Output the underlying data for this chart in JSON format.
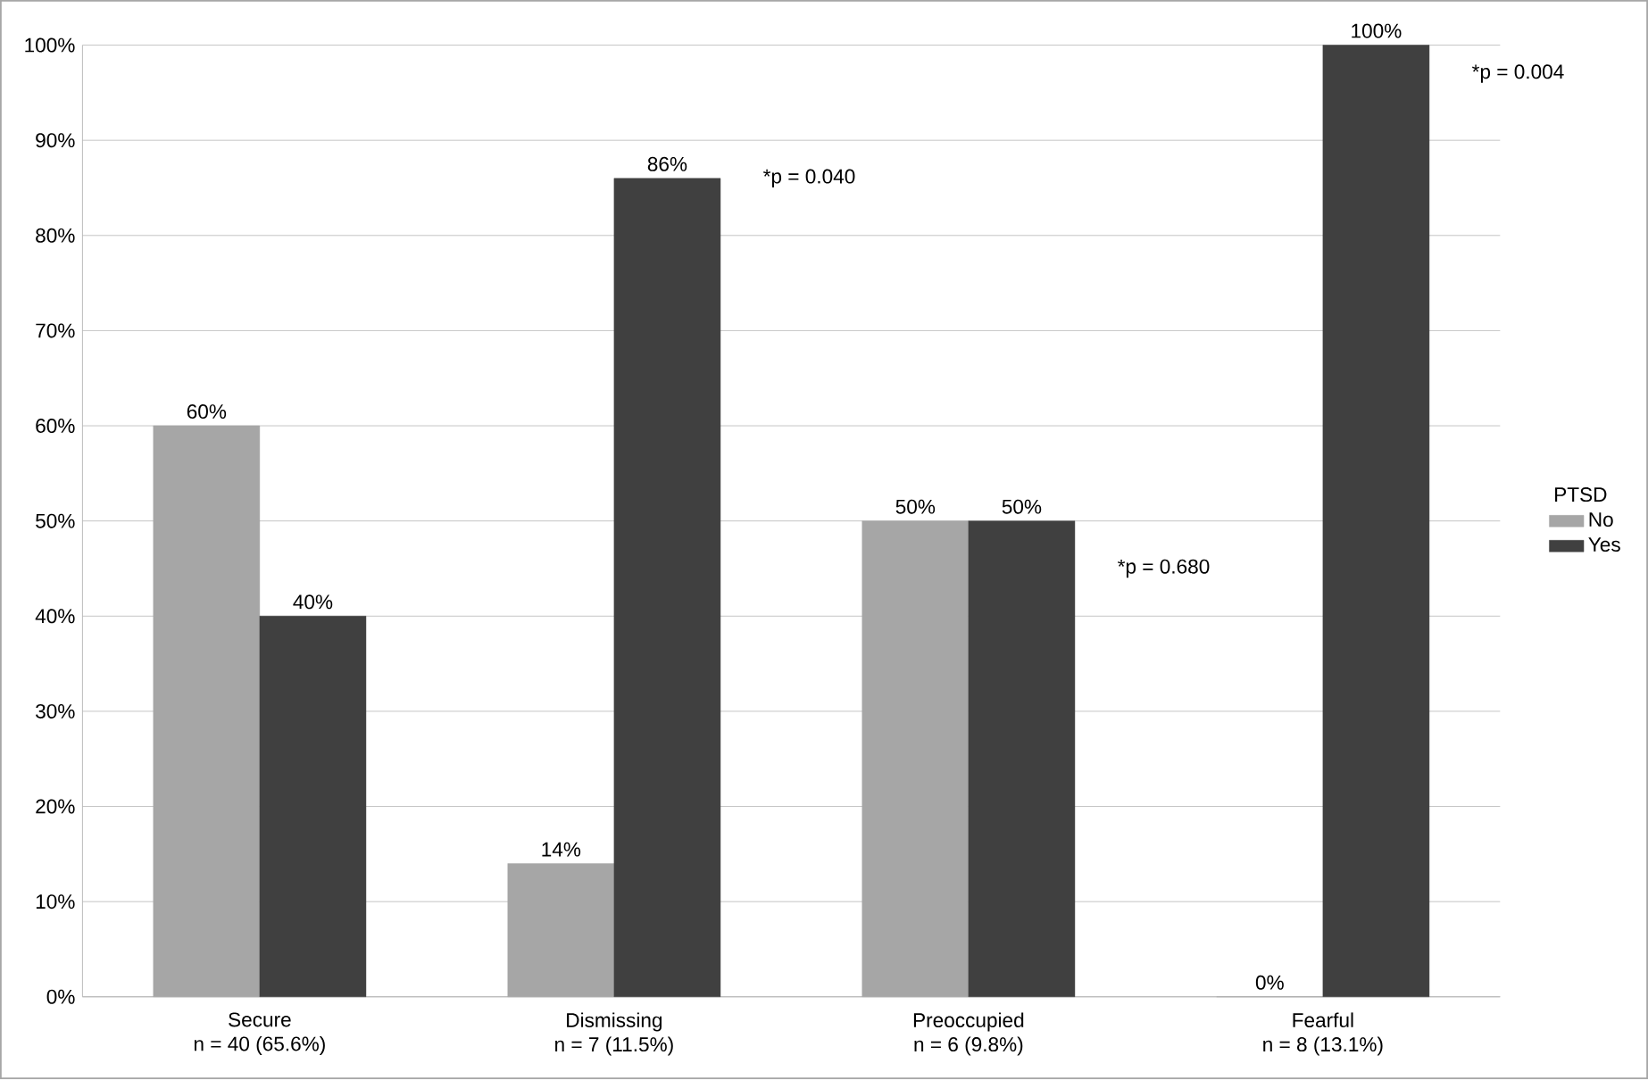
{
  "chart_data": {
    "type": "bar",
    "categories": [
      "Secure\nn = 40 (65.6%)",
      "Dismissing\nn = 7 (11.5%)",
      "Preoccupied\nn = 6 (9.8%)",
      "Fearful\nn = 8 (13.1%)"
    ],
    "series": [
      {
        "name": "No",
        "color": "#a6a6a6",
        "values": [
          60,
          14,
          50,
          0
        ],
        "value_labels": [
          "60%",
          "14%",
          "50%",
          "0%"
        ]
      },
      {
        "name": "Yes",
        "color": "#404040",
        "values": [
          40,
          86,
          50,
          100
        ],
        "value_labels": [
          "40%",
          "86%",
          "50%",
          "100%"
        ]
      }
    ],
    "legend_title": "PTSD",
    "legend": "right",
    "grid": "y",
    "ylim": [
      0,
      100
    ],
    "yticks": [
      {
        "value": 0,
        "label": "0%"
      },
      {
        "value": 10,
        "label": "10%"
      },
      {
        "value": 20,
        "label": "20%"
      },
      {
        "value": 30,
        "label": "30%"
      },
      {
        "value": 40,
        "label": "40%"
      },
      {
        "value": 50,
        "label": "50%"
      },
      {
        "value": 60,
        "label": "60%"
      },
      {
        "value": 70,
        "label": "70%"
      },
      {
        "value": 80,
        "label": "80%"
      },
      {
        "value": 90,
        "label": "90%"
      },
      {
        "value": 100,
        "label": "100%"
      }
    ],
    "annotations": [
      "*p = 0.040",
      "*p = 0.680",
      "*p = 0.004"
    ]
  }
}
